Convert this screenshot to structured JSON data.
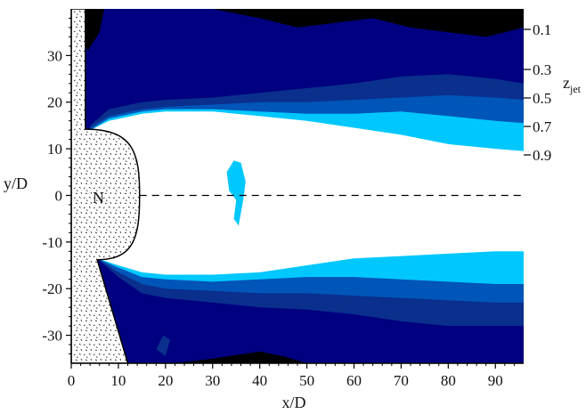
{
  "chart_data": {
    "type": "heatmap",
    "title": "",
    "xlabel": "x/D",
    "ylabel": "y/D",
    "xlim": [
      0,
      96
    ],
    "ylim": [
      -36,
      40
    ],
    "x_ticks": [
      0,
      10,
      20,
      30,
      40,
      50,
      60,
      70,
      80,
      90
    ],
    "y_ticks": [
      -30,
      -20,
      -10,
      0,
      10,
      20,
      30
    ],
    "colorbar": {
      "label": "z",
      "label_subscript": "jet",
      "levels": [
        "0.1",
        "0.3",
        "0.5",
        "0.7",
        "0.9"
      ]
    },
    "nozzle_label": "N",
    "centerline_y": 0,
    "colors": {
      "black": "#000000",
      "level_0_1": "#000080",
      "level_0_3": "#0a2f8c",
      "level_0_5": "#0055b8",
      "level_0_7": "#00c8ff",
      "level_0_9": "#ffffff"
    },
    "contour_boundaries": {
      "upper": {
        "level_0_1": [
          [
            3.5,
            31
          ],
          [
            6,
            35
          ],
          [
            7,
            40
          ]
        ],
        "level_0_3": [
          [
            4,
            15
          ],
          [
            8,
            18.5
          ],
          [
            15,
            20
          ],
          [
            20,
            20.5
          ],
          [
            30,
            21
          ],
          [
            40,
            22
          ],
          [
            50,
            23
          ],
          [
            60,
            24
          ],
          [
            70,
            25.5
          ],
          [
            80,
            26
          ],
          [
            90,
            25
          ],
          [
            96,
            24
          ]
        ],
        "level_0_5": [
          [
            4,
            14.5
          ],
          [
            8,
            17
          ],
          [
            15,
            18.5
          ],
          [
            20,
            19
          ],
          [
            30,
            19.5
          ],
          [
            40,
            20
          ],
          [
            50,
            20
          ],
          [
            60,
            20.5
          ],
          [
            70,
            21
          ],
          [
            80,
            21.5
          ],
          [
            90,
            21
          ],
          [
            96,
            20.5
          ]
        ],
        "level_0_7": [
          [
            4,
            14
          ],
          [
            8,
            16.5
          ],
          [
            15,
            18
          ],
          [
            20,
            18.5
          ],
          [
            30,
            18.5
          ],
          [
            40,
            18
          ],
          [
            50,
            17.5
          ],
          [
            60,
            17.5
          ],
          [
            70,
            18
          ],
          [
            80,
            17
          ],
          [
            90,
            16
          ],
          [
            96,
            15.5
          ]
        ],
        "level_0_9": [
          [
            4,
            14
          ],
          [
            8,
            16
          ],
          [
            15,
            17.5
          ],
          [
            20,
            18
          ],
          [
            30,
            18
          ],
          [
            40,
            17
          ],
          [
            50,
            16
          ],
          [
            60,
            14.5
          ],
          [
            70,
            13
          ],
          [
            80,
            11
          ],
          [
            90,
            10
          ],
          [
            96,
            9.5
          ]
        ]
      },
      "lower": {
        "level_0_9": [
          [
            5.5,
            -13.5
          ],
          [
            10,
            -15
          ],
          [
            15,
            -16.5
          ],
          [
            20,
            -17
          ],
          [
            30,
            -17
          ],
          [
            40,
            -16.5
          ],
          [
            50,
            -15
          ],
          [
            60,
            -13.5
          ],
          [
            70,
            -13
          ],
          [
            80,
            -12.5
          ],
          [
            90,
            -12
          ],
          [
            96,
            -12
          ]
        ],
        "level_0_7": [
          [
            5.5,
            -13.5
          ],
          [
            10,
            -15.5
          ],
          [
            15,
            -17.5
          ],
          [
            20,
            -18
          ],
          [
            30,
            -18.5
          ],
          [
            40,
            -18
          ],
          [
            50,
            -17.5
          ],
          [
            60,
            -17.5
          ],
          [
            70,
            -18
          ],
          [
            80,
            -18.5
          ],
          [
            90,
            -19
          ],
          [
            96,
            -19
          ]
        ],
        "level_0_5": [
          [
            5.5,
            -13.5
          ],
          [
            10,
            -16.5
          ],
          [
            15,
            -19
          ],
          [
            20,
            -20
          ],
          [
            30,
            -20.5
          ],
          [
            40,
            -21
          ],
          [
            50,
            -21
          ],
          [
            60,
            -21.5
          ],
          [
            70,
            -22
          ],
          [
            80,
            -22.5
          ],
          [
            90,
            -23
          ],
          [
            96,
            -23
          ]
        ],
        "level_0_3": [
          [
            5.5,
            -13.5
          ],
          [
            10,
            -17.5
          ],
          [
            15,
            -21
          ],
          [
            20,
            -22
          ],
          [
            30,
            -23
          ],
          [
            40,
            -24
          ],
          [
            50,
            -24.5
          ],
          [
            60,
            -25.5
          ],
          [
            70,
            -27
          ],
          [
            80,
            -28
          ],
          [
            90,
            -28
          ],
          [
            96,
            -28
          ]
        ],
        "level_0_1": [
          [
            22,
            -36
          ],
          [
            30,
            -35
          ],
          [
            40,
            -33.5
          ],
          [
            45,
            -34.5
          ],
          [
            50,
            -36
          ]
        ]
      },
      "isolated": [
        {
          "level": "level_0_7",
          "points": [
            [
              33,
              5
            ],
            [
              34.5,
              7.5
            ],
            [
              36,
              7
            ],
            [
              37,
              3
            ],
            [
              36.5,
              -1
            ],
            [
              35.5,
              -6.5
            ],
            [
              34.5,
              -5
            ],
            [
              35,
              -1
            ],
            [
              33.5,
              1
            ]
          ]
        },
        {
          "level": "level_0_3",
          "points": [
            [
              18,
              -33
            ],
            [
              19.5,
              -30
            ],
            [
              21,
              -31
            ],
            [
              20,
              -34.5
            ]
          ]
        }
      ]
    }
  }
}
